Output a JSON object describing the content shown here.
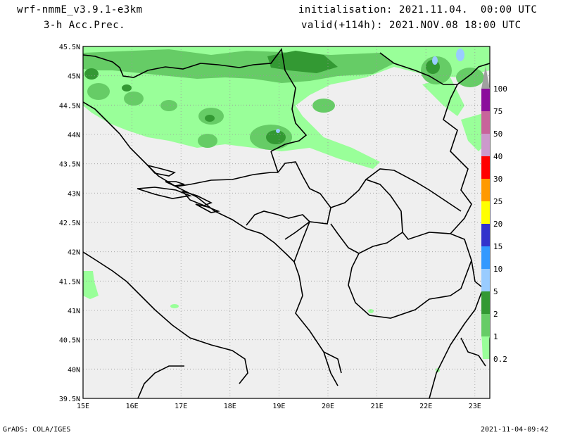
{
  "header": {
    "model": "wrf-nmmE_v3.9.1-e3km",
    "field": "3-h Acc.Prec.",
    "init": "initialisation: 2021.11.04.  00:00 UTC",
    "valid": "valid(+114h): 2021.NOV.08 18:00 UTC"
  },
  "map": {
    "lat_labels": [
      "45.5N",
      "45N",
      "44.5N",
      "44N",
      "43.5N",
      "43N",
      "42.5N",
      "42N",
      "41.5N",
      "41N",
      "40.5N",
      "40N",
      "39.5N"
    ],
    "lon_labels": [
      "15E",
      "16E",
      "17E",
      "18E",
      "19E",
      "20E",
      "21E",
      "22E",
      "23E"
    ],
    "colors": {
      "land": "#efefef",
      "border": "#000000",
      "grid": "#9a9a9a"
    }
  },
  "legend": {
    "items": [
      {
        "label": "100",
        "color": "#a0a0a0"
      },
      {
        "label": "75",
        "color": "#8b0d9c"
      },
      {
        "label": "50",
        "color": "#c8649b"
      },
      {
        "label": "40",
        "color": "#cc99cc"
      },
      {
        "label": "30",
        "color": "#ff0000"
      },
      {
        "label": "25",
        "color": "#ff9900"
      },
      {
        "label": "20",
        "color": "#ffff00"
      },
      {
        "label": "15",
        "color": "#3333cc"
      },
      {
        "label": "10",
        "color": "#3399ff"
      },
      {
        "label": "5",
        "color": "#99ccff"
      },
      {
        "label": "2",
        "color": "#339933"
      },
      {
        "label": "1",
        "color": "#66cc66"
      },
      {
        "label": "0.2",
        "color": "#99ff99"
      }
    ]
  },
  "footer": {
    "left": "GrADS: COLA/IGES",
    "right": "2021-11-04-09:42"
  }
}
